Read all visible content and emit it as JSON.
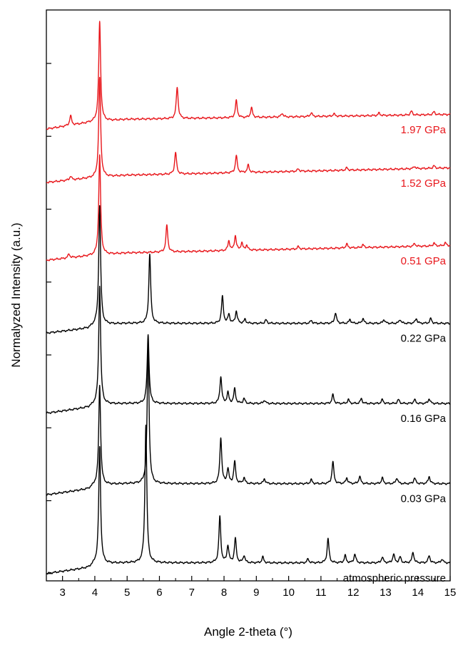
{
  "chart_data": {
    "type": "line",
    "title": "",
    "xlabel": "Angle 2-theta (°)",
    "ylabel": "Normalyzed Intensity (a.u.)",
    "xlim": [
      2.5,
      15
    ],
    "x_ticks": [
      3,
      4,
      5,
      6,
      7,
      8,
      9,
      10,
      11,
      12,
      13,
      14,
      15
    ],
    "y_tick_labels": "none",
    "grid": false,
    "legend": "none (inline labels at right of each trace)",
    "colors": {
      "ambient": "#000000",
      "high_pressure": "#e8161b"
    },
    "series": [
      {
        "name": "atmospheric pressure",
        "color": "#000000",
        "baseline": 0.0,
        "rise": [
          [
            2.5,
            0.0
          ],
          [
            3.8,
            0.12
          ],
          [
            4.0,
            0.2
          ],
          [
            5.0,
            0.22
          ],
          [
            15,
            0.22
          ]
        ],
        "peaks": [
          [
            4.15,
            2.4
          ],
          [
            5.58,
            2.85
          ],
          [
            7.87,
            0.95
          ],
          [
            8.12,
            0.35
          ],
          [
            8.35,
            0.5
          ],
          [
            8.62,
            0.15
          ],
          [
            9.2,
            0.12
          ],
          [
            10.6,
            0.08
          ],
          [
            11.22,
            0.5
          ],
          [
            11.75,
            0.15
          ],
          [
            12.05,
            0.18
          ],
          [
            12.9,
            0.12
          ],
          [
            13.25,
            0.18
          ],
          [
            13.45,
            0.12
          ],
          [
            13.85,
            0.22
          ],
          [
            14.35,
            0.15
          ],
          [
            14.75,
            0.08
          ]
        ]
      },
      {
        "name": "0.03 GPa",
        "color": "#000000",
        "baseline": 1.62,
        "rise": [
          [
            2.5,
            1.62
          ],
          [
            3.8,
            1.74
          ],
          [
            4.0,
            1.82
          ],
          [
            5.0,
            1.85
          ],
          [
            15,
            1.85
          ]
        ],
        "peaks": [
          [
            4.15,
            2.05
          ],
          [
            5.65,
            2.85
          ],
          [
            7.9,
            0.95
          ],
          [
            8.12,
            0.3
          ],
          [
            8.33,
            0.45
          ],
          [
            8.62,
            0.12
          ],
          [
            9.25,
            0.1
          ],
          [
            10.7,
            0.08
          ],
          [
            11.37,
            0.45
          ],
          [
            11.8,
            0.12
          ],
          [
            12.2,
            0.15
          ],
          [
            12.9,
            0.12
          ],
          [
            13.35,
            0.12
          ],
          [
            13.9,
            0.12
          ],
          [
            14.35,
            0.15
          ]
        ]
      },
      {
        "name": "0.16 GPa",
        "color": "#000000",
        "baseline": 3.3,
        "rise": [
          [
            2.5,
            3.3
          ],
          [
            3.8,
            3.42
          ],
          [
            4.0,
            3.48
          ],
          [
            5.0,
            3.5
          ],
          [
            15,
            3.5
          ]
        ],
        "peaks": [
          [
            4.15,
            2.45
          ],
          [
            5.65,
            1.42
          ],
          [
            7.9,
            0.55
          ],
          [
            8.12,
            0.22
          ],
          [
            8.33,
            0.3
          ],
          [
            8.62,
            0.1
          ],
          [
            9.25,
            0.07
          ],
          [
            11.37,
            0.18
          ],
          [
            11.85,
            0.08
          ],
          [
            12.25,
            0.1
          ],
          [
            12.9,
            0.08
          ],
          [
            13.4,
            0.08
          ],
          [
            13.9,
            0.08
          ],
          [
            14.35,
            0.1
          ]
        ]
      },
      {
        "name": "0.22 GPa",
        "color": "#000000",
        "baseline": 4.95,
        "rise": [
          [
            2.5,
            4.95
          ],
          [
            3.8,
            5.05
          ],
          [
            4.0,
            5.12
          ],
          [
            5.0,
            5.15
          ],
          [
            15,
            5.15
          ]
        ],
        "peaks": [
          [
            4.15,
            2.45
          ],
          [
            5.7,
            1.42
          ],
          [
            7.95,
            0.55
          ],
          [
            8.15,
            0.18
          ],
          [
            8.38,
            0.25
          ],
          [
            8.65,
            0.08
          ],
          [
            9.3,
            0.07
          ],
          [
            10.7,
            0.06
          ],
          [
            11.45,
            0.22
          ],
          [
            11.9,
            0.08
          ],
          [
            12.3,
            0.1
          ],
          [
            12.95,
            0.08
          ],
          [
            13.45,
            0.08
          ],
          [
            13.95,
            0.1
          ],
          [
            14.4,
            0.1
          ]
        ]
      },
      {
        "name": "0.51 GPa",
        "color": "#e8161b",
        "baseline": 6.45,
        "rise": [
          [
            2.5,
            6.45
          ],
          [
            4.0,
            6.55
          ],
          [
            5.0,
            6.6
          ],
          [
            15,
            6.75
          ]
        ],
        "peaks": [
          [
            3.2,
            0.08
          ],
          [
            4.15,
            2.05
          ],
          [
            6.23,
            0.55
          ],
          [
            8.15,
            0.2
          ],
          [
            8.35,
            0.3
          ],
          [
            8.55,
            0.15
          ],
          [
            8.7,
            0.1
          ],
          [
            10.3,
            0.05
          ],
          [
            11.8,
            0.08
          ],
          [
            12.3,
            0.06
          ],
          [
            13.9,
            0.06
          ],
          [
            14.5,
            0.06
          ],
          [
            14.85,
            0.06
          ]
        ]
      },
      {
        "name": "1.52 GPa",
        "color": "#e8161b",
        "baseline": 8.05,
        "rise": [
          [
            2.5,
            8.05
          ],
          [
            4.0,
            8.15
          ],
          [
            5.0,
            8.2
          ],
          [
            15,
            8.35
          ]
        ],
        "peaks": [
          [
            3.25,
            0.08
          ],
          [
            4.15,
            2.05
          ],
          [
            6.5,
            0.45
          ],
          [
            8.38,
            0.35
          ],
          [
            8.75,
            0.15
          ],
          [
            10.3,
            0.05
          ],
          [
            11.8,
            0.05
          ],
          [
            13.9,
            0.05
          ],
          [
            14.5,
            0.05
          ]
        ]
      },
      {
        "name": "1.97 GPa",
        "color": "#e8161b",
        "baseline": 9.15,
        "rise": [
          [
            2.5,
            9.15
          ],
          [
            4.0,
            9.3
          ],
          [
            5.0,
            9.35
          ],
          [
            15,
            9.45
          ]
        ],
        "peaks": [
          [
            3.25,
            0.2
          ],
          [
            4.15,
            2.05
          ],
          [
            6.55,
            0.65
          ],
          [
            8.38,
            0.35
          ],
          [
            8.85,
            0.2
          ],
          [
            9.8,
            0.08
          ],
          [
            10.7,
            0.08
          ],
          [
            11.4,
            0.05
          ],
          [
            12.8,
            0.05
          ],
          [
            13.8,
            0.08
          ],
          [
            14.5,
            0.06
          ]
        ]
      }
    ]
  }
}
